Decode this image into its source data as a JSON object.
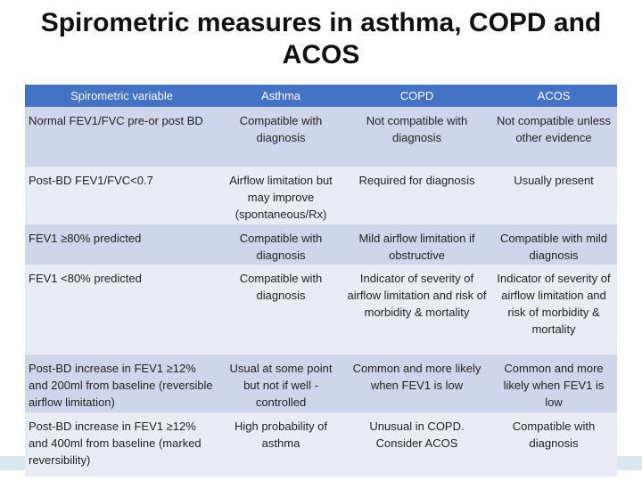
{
  "title": "Spirometric measures in asthma, COPD and ACOS",
  "table": {
    "header": [
      "Spirometric variable",
      "Asthma",
      "COPD",
      "ACOS"
    ],
    "rows": [
      [
        "Normal FEV1/FVC pre-or post BD",
        "Compatible with diagnosis",
        "Not compatible with diagnosis",
        "Not compatible unless other evidence"
      ],
      [
        "Post-BD FEV1/FVC<0.7",
        "Airflow limitation but may improve (spontaneous/Rx)",
        "Required for diagnosis",
        "Usually present"
      ],
      [
        "FEV1 ≥80% predicted",
        "Compatible with diagnosis",
        "Mild airflow limitation if obstructive",
        "Compatible with mild diagnosis"
      ],
      [
        "FEV1 <80% predicted",
        "Compatible with diagnosis",
        "Indicator of severity of airflow limitation and risk of morbidity & mortality",
        "Indicator of severity of airflow limitation and risk of morbidity & mortality"
      ],
      [
        "Post-BD increase in FEV1 ≥12% and 200ml from baseline (reversible airflow limitation)",
        "Usual at some point but not if well -controlled",
        "Common and more likely when FEV1 is low",
        "Common and more likely when FEV1 is low"
      ],
      [
        "Post-BD increase in FEV1 ≥12% and 400ml from baseline (marked reversibility)",
        "High probability of asthma",
        "Unusual in COPD. Consider ACOS",
        "Compatible with diagnosis"
      ]
    ]
  }
}
